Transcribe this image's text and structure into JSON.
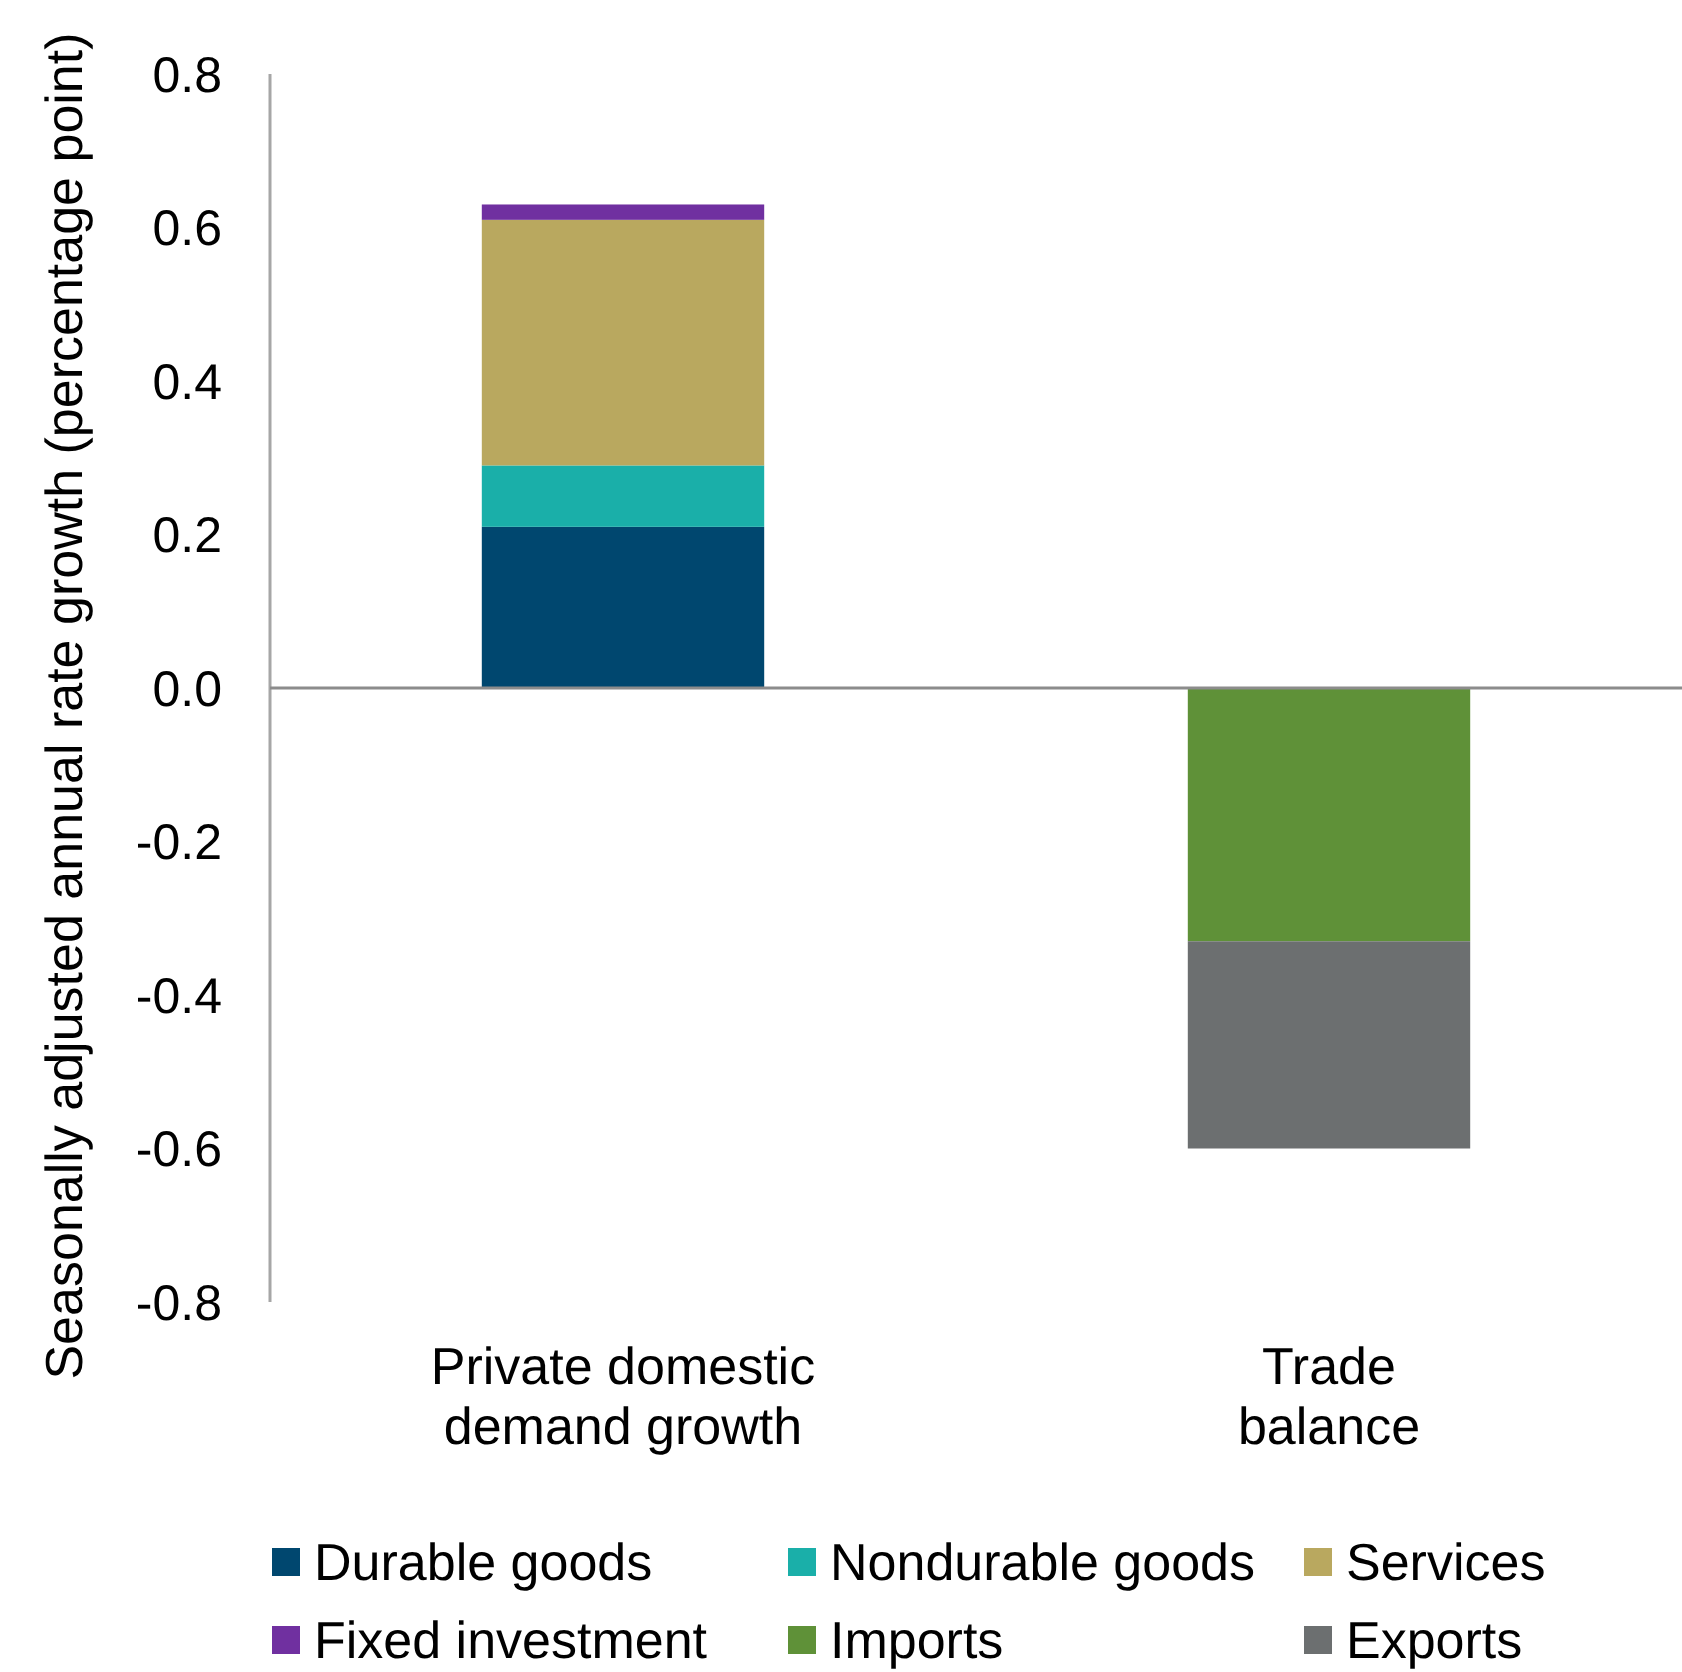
{
  "chart_data": {
    "type": "bar",
    "stacked": true,
    "ylabel": "Seasonally adjusted annual rate growth (percentage point)",
    "categories": [
      "Private domestic\ndemand growth",
      "Trade\nbalance"
    ],
    "series": [
      {
        "name": "Durable goods",
        "color": "#00476f",
        "values": [
          0.21,
          null
        ]
      },
      {
        "name": "Nondurable goods",
        "color": "#1aafa9",
        "values": [
          0.08,
          null
        ]
      },
      {
        "name": "Services",
        "color": "#b9a85f",
        "values": [
          0.32,
          null
        ]
      },
      {
        "name": "Fixed investment",
        "color": "#7030a0",
        "values": [
          0.02,
          null
        ]
      },
      {
        "name": "Imports",
        "color": "#5f9138",
        "values": [
          null,
          -0.33
        ]
      },
      {
        "name": "Exports",
        "color": "#6c6f70",
        "values": [
          null,
          -0.27
        ]
      }
    ],
    "ylim": [
      -0.8,
      0.8
    ],
    "yticks": [
      -0.8,
      -0.6,
      -0.4,
      -0.2,
      {
        "value": 0,
        "label": "0.0"
      },
      0.2,
      0.4,
      0.6,
      0.8
    ],
    "legend": "bottom"
  }
}
